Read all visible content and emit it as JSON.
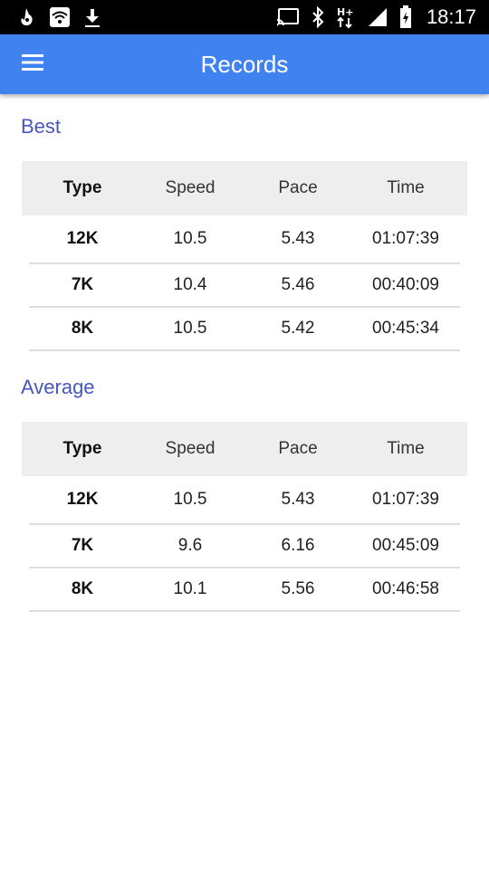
{
  "status_bar": {
    "left_icons": [
      "notification-icon",
      "wifi-icon",
      "download-icon"
    ],
    "right_icons": [
      "cast-icon",
      "bluetooth-icon",
      "hplus-network-icon",
      "signal-icon",
      "battery-charging-icon"
    ],
    "time": "18:17"
  },
  "app_bar": {
    "title": "Records",
    "menu_icon": "menu-icon",
    "color": "#3f82f0"
  },
  "best": {
    "title": "Best",
    "headers": [
      "Type",
      "Speed",
      "Pace",
      "Time"
    ],
    "rows": [
      [
        "12K",
        "10.5",
        "5.43",
        "01:07:39"
      ],
      [
        "7K",
        "10.4",
        "5.46",
        "00:40:09"
      ],
      [
        "8K",
        "10.5",
        "5.42",
        "00:45:34"
      ]
    ]
  },
  "average": {
    "title": "Average",
    "headers": [
      "Type",
      "Speed",
      "Pace",
      "Time"
    ],
    "rows": [
      [
        "12K",
        "10.5",
        "5.43",
        "01:07:39"
      ],
      [
        "7K",
        "9.6",
        "6.16",
        "00:45:09"
      ],
      [
        "8K",
        "10.1",
        "5.56",
        "00:46:58"
      ]
    ]
  }
}
